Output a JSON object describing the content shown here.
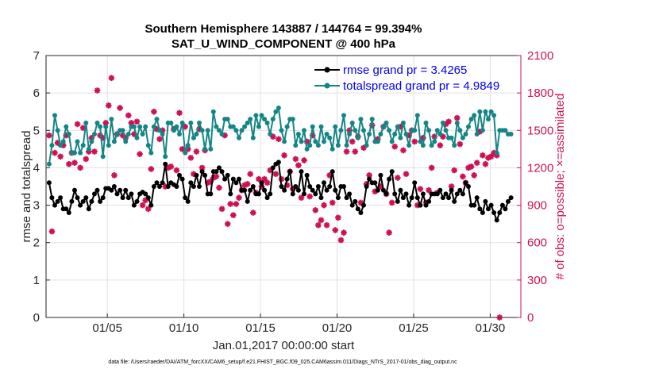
{
  "chart_data": {
    "type": "line",
    "title": "Southern Hemisphere 143887 / 144764 = 99.394%",
    "subtitle": "SAT_U_WIND_COMPONENT @ 400 hPa",
    "xlabel": "Jan.01,2017 00:00:00 start",
    "ylabel_left": "rmse and totalspread",
    "ylabel_right": "# of obs: o=possible; ×=assimilated",
    "xlim": [
      1,
      32
    ],
    "ylim_left": [
      0,
      7
    ],
    "ylim_right": [
      0,
      2100
    ],
    "x_ticks": [
      5,
      10,
      15,
      20,
      25,
      30
    ],
    "x_tick_labels": [
      "01/05",
      "01/10",
      "01/15",
      "01/20",
      "01/25",
      "01/30"
    ],
    "y_left_ticks": [
      "0",
      "1",
      "2",
      "3",
      "4",
      "5",
      "6",
      "7"
    ],
    "y_right_ticks": [
      "0",
      "300",
      "600",
      "900",
      "1200",
      "1500",
      "1800",
      "2100"
    ],
    "colors": {
      "rmse": "#000000",
      "spread": "#148585",
      "obs": "#cc1155",
      "legend_text": "#0000ee"
    },
    "series": [
      {
        "name": "rmse grand pr = 3.4265",
        "legend": "rmse grand pr = 3.4265",
        "values": [
          3.6,
          3.2,
          3.0,
          3.1,
          3.2,
          2.9,
          2.9,
          2.8,
          3.1,
          3.4,
          3.2,
          3.0,
          3.1,
          3.2,
          2.9,
          3.1,
          3.3,
          3.4,
          3.1,
          3.2,
          3.45,
          3.45,
          3.4,
          3.5,
          3.3,
          3.4,
          3.2,
          3.4,
          3.2,
          3.3,
          3.0,
          3.1,
          3.3,
          3.35,
          3.3,
          3.2,
          3.0,
          3.5,
          3.6,
          3.5,
          3.6,
          4.1,
          3.5,
          3.6,
          3.55,
          3.5,
          3.8,
          3.7,
          3.2,
          3.1,
          3.6,
          3.5,
          3.8,
          3.5,
          3.9,
          3.8,
          3.3,
          3.3,
          3.9,
          3.9,
          4.0,
          3.9,
          3.7,
          3.8,
          3.3,
          3.7,
          3.6,
          3.7,
          3.4,
          3.4,
          3.1,
          3.4,
          3.5,
          3.3,
          3.3,
          3.6,
          3.4,
          3.2,
          3.3,
          4.0,
          4.1,
          4.15,
          3.5,
          3.4,
          3.7,
          3.9,
          3.3,
          3.5,
          3.4,
          3.9,
          3.3,
          3.8,
          3.5,
          3.4,
          3.3,
          3.5,
          3.2,
          3.6,
          3.4,
          3.5,
          3.9,
          3.4,
          3.2,
          3.5,
          3.5,
          3.2,
          3.3,
          3.0,
          3.1,
          2.9,
          2.8,
          3.0,
          3.5,
          3.7,
          3.6,
          3.6,
          3.4,
          3.8,
          3.4,
          3.3,
          3.7,
          3.9,
          3.3,
          3.1,
          3.4,
          3.2,
          3.3,
          3.0,
          3.2,
          3.6,
          3.2,
          3.0,
          3.3,
          3.0,
          3.1,
          3.3,
          3.3,
          3.3,
          3.4,
          3.2,
          3.3,
          3.2,
          3.4,
          3.1,
          3.3,
          3.4,
          3.3,
          3.6,
          3.5,
          3.0,
          3.0,
          3.2,
          2.9,
          2.8,
          3.1,
          2.9,
          3.0,
          2.8,
          2.6,
          2.8,
          3.0,
          2.9,
          3.1,
          3.2
        ]
      },
      {
        "name": "totalspread grand pr = 4.9849",
        "legend": "totalspread grand pr = 4.9849",
        "values": [
          4.1,
          4.6,
          5.4,
          5.0,
          4.6,
          4.7,
          5.1,
          4.9,
          4.4,
          4.4,
          4.7,
          4.4,
          4.6,
          5.2,
          4.5,
          4.7,
          4.9,
          5.2,
          5.1,
          4.3,
          5.1,
          4.6,
          5.3,
          4.7,
          4.9,
          5.0,
          5.0,
          4.7,
          4.9,
          5.1,
          5.1,
          4.8,
          5.1,
          4.9,
          5.1,
          4.6,
          4.4,
          5.1,
          5.3,
          5.0,
          4.9,
          4.3,
          5.2,
          5.2,
          5.0,
          5.1,
          4.9,
          5.2,
          4.4,
          4.6,
          5.2,
          4.8,
          4.9,
          5.2,
          5.0,
          4.5,
          5.0,
          4.5,
          5.5,
          5.1,
          5.0,
          4.9,
          5.3,
          5.3,
          5.1,
          5.1,
          5.0,
          4.8,
          5.0,
          5.1,
          5.2,
          5.3,
          4.8,
          5.4,
          5.1,
          5.4,
          5.3,
          5.2,
          4.9,
          5.3,
          5.5,
          5.6,
          5.0,
          4.7,
          5.1,
          5.3,
          5.3,
          4.6,
          4.9,
          4.7,
          5.0,
          4.5,
          4.6,
          5.1,
          4.7,
          4.6,
          5.1,
          4.7,
          4.9,
          4.8,
          4.5,
          5.1,
          4.6,
          5.0,
          5.4,
          4.6,
          4.9,
          5.2,
          5.0,
          4.8,
          5.3,
          5.0,
          4.6,
          4.9,
          5.3,
          4.7,
          4.7,
          4.9,
          5.1,
          5.2,
          5.0,
          4.7,
          4.9,
          5.1,
          4.8,
          5.2,
          4.9,
          4.6,
          5.0,
          5.0,
          5.4,
          4.7,
          4.6,
          5.2,
          5.0,
          4.6,
          4.7,
          5.0,
          4.9,
          5.2,
          5.0,
          4.8,
          4.8,
          4.6,
          5.2,
          5.0,
          4.8,
          4.9,
          5.1,
          5.3,
          5.4,
          4.9,
          5.5,
          5.0,
          5.5,
          5.3,
          5.5,
          5.4,
          4.4,
          5.0,
          5.0,
          5.0,
          4.9,
          4.9
        ]
      },
      {
        "name": "obs assimilated",
        "axis": "right",
        "values": [
          1460,
          690,
          1320,
          1400,
          1290,
          1380,
          1460,
          1230,
          1320,
          1240,
          1550,
          1200,
          1520,
          1270,
          1330,
          1440,
          1330,
          1820,
          1460,
          1440,
          1560,
          1700,
          1920,
          1140,
          1470,
          1680,
          1460,
          1440,
          1620,
          1560,
          1470,
          1570,
          1310,
          900,
          940,
          870,
          1190,
          1650,
          1510,
          1430,
          1500,
          1050,
          1200,
          1210,
          1510,
          1180,
          1640,
          1350,
          1530,
          1350,
          1280,
          1150,
          1330,
          1510,
          1200,
          1340,
          1080,
          1090,
          1120,
          1130,
          1040,
          870,
          1460,
          750,
          910,
          820,
          910,
          960,
          1020,
          1060,
          1070,
          1150,
          840,
          1000,
          1110,
          1050,
          1110,
          1080,
          1180,
          1450,
          1150,
          1430,
          1110,
          1300,
          1060,
          1170,
          1030,
          1270,
          1220,
          960,
          1260,
          1410,
          970,
          1460,
          860,
          740,
          780,
          900,
          740,
          1140,
          920,
          700,
          800,
          620,
          680,
          1330,
          1500,
          1410,
          1330,
          1450,
          920,
          1360,
          1070,
          1140,
          1540,
          1010,
          1430,
          1050,
          1530,
          990,
          680,
          920,
          1370,
          1120,
          1530,
          1340,
          1150,
          1460,
          1500,
          1410,
          900,
          1030,
          1440,
          920,
          1020,
          1200,
          1450,
          1000,
          1380,
          1450,
          1550,
          1570,
          1050,
          1180,
          1600,
          1390,
          1130,
          1080,
          1200,
          1210,
          1140,
          1240,
          1490,
          1300,
          1230,
          1280,
          1290,
          1320,
          1300,
          0
        ]
      }
    ]
  },
  "footnote": "data file: /Users/raeder/DAI/ATM_forcXX/CAM6_setup/f.e21.FHIST_BGC.f09_025.CAM6assim.011/Diags_NTrS_2017-01/obs_diag_output.nc"
}
